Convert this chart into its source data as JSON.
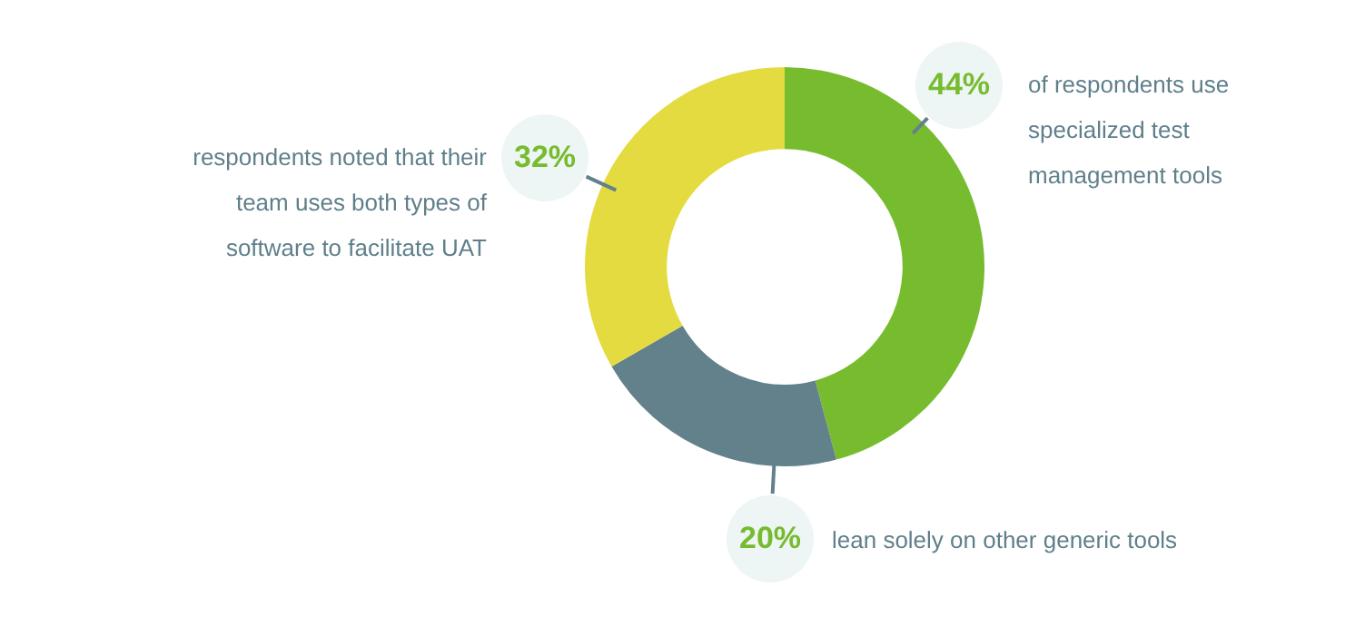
{
  "chart_data": {
    "type": "donut",
    "categories": [
      "of respondents use specialized test management tools",
      "lean solely on other generic tools",
      "respondents noted that their team uses both types of software to facilitate UAT"
    ],
    "values": [
      44,
      20,
      32
    ],
    "value_labels": [
      "44%",
      "20%",
      "32%"
    ],
    "colors": [
      "#76bc2e",
      "#62818b",
      "#e3db3f"
    ],
    "legend": false
  }
}
